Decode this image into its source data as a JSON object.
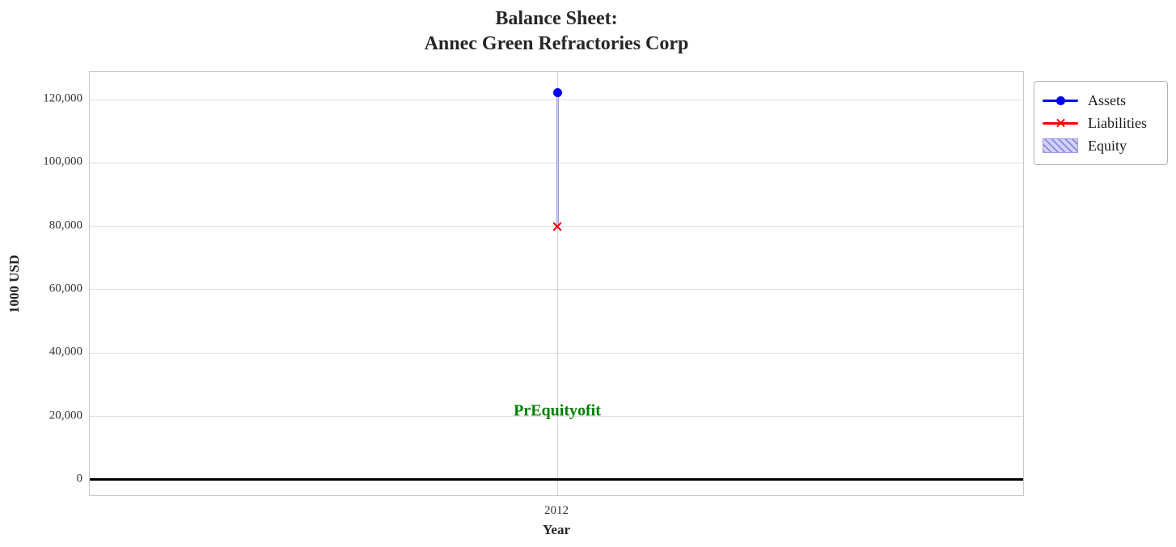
{
  "figure": {
    "title_line1": "Balance Sheet:",
    "title_line2": "Annec Green Refractories Corp",
    "y_axis_label": "1000 USD",
    "x_axis_label": "Year",
    "x_tick_label": "2012",
    "annotation_text": "PrEquityofit",
    "annotation_color": "#008000"
  },
  "legend": {
    "items": [
      {
        "label": "Assets",
        "marker": "line-with-circle",
        "color": "#0000ff"
      },
      {
        "label": "Liabilities",
        "marker": "line-with-x",
        "color": "#ff0000"
      },
      {
        "label": "Equity",
        "marker": "hatched-patch",
        "fill_color": "#d2d2f6",
        "hatch_color": "#8888dd"
      }
    ]
  },
  "chart_data": {
    "type": "line",
    "title": "Balance Sheet:\nAnnec Green Refractories Corp",
    "xlabel": "Year",
    "ylabel": "1000 USD",
    "x": [
      2012
    ],
    "xticklabels": [
      "2012"
    ],
    "yticks": [
      0,
      20000,
      40000,
      60000,
      80000,
      100000,
      120000
    ],
    "yticklabels": [
      "0",
      "20,000",
      "40,000",
      "60,000",
      "80,000",
      "100,000",
      "120,000"
    ],
    "ylim": [
      -5400,
      128700
    ],
    "grid": true,
    "legend_position": "outside-upper-right",
    "series": [
      {
        "name": "Assets",
        "plot_type": "line",
        "marker": "o",
        "color": "#0000ff",
        "values": [
          122300
        ]
      },
      {
        "name": "Liabilities",
        "plot_type": "line",
        "marker": "x",
        "color": "#ff0000",
        "values": [
          79950
        ]
      },
      {
        "name": "Equity",
        "plot_type": "bar",
        "stacked_on": "Liabilities",
        "color": "#d2d2f6",
        "edge_color": "#9b9be0",
        "hatch": "///",
        "values": [
          42350
        ]
      }
    ],
    "annotation": {
      "text": "PrEquityofit",
      "color": "#008000",
      "x": 2012,
      "y": 21700
    },
    "zero_line": {
      "value": 0,
      "color": "#000000"
    }
  }
}
